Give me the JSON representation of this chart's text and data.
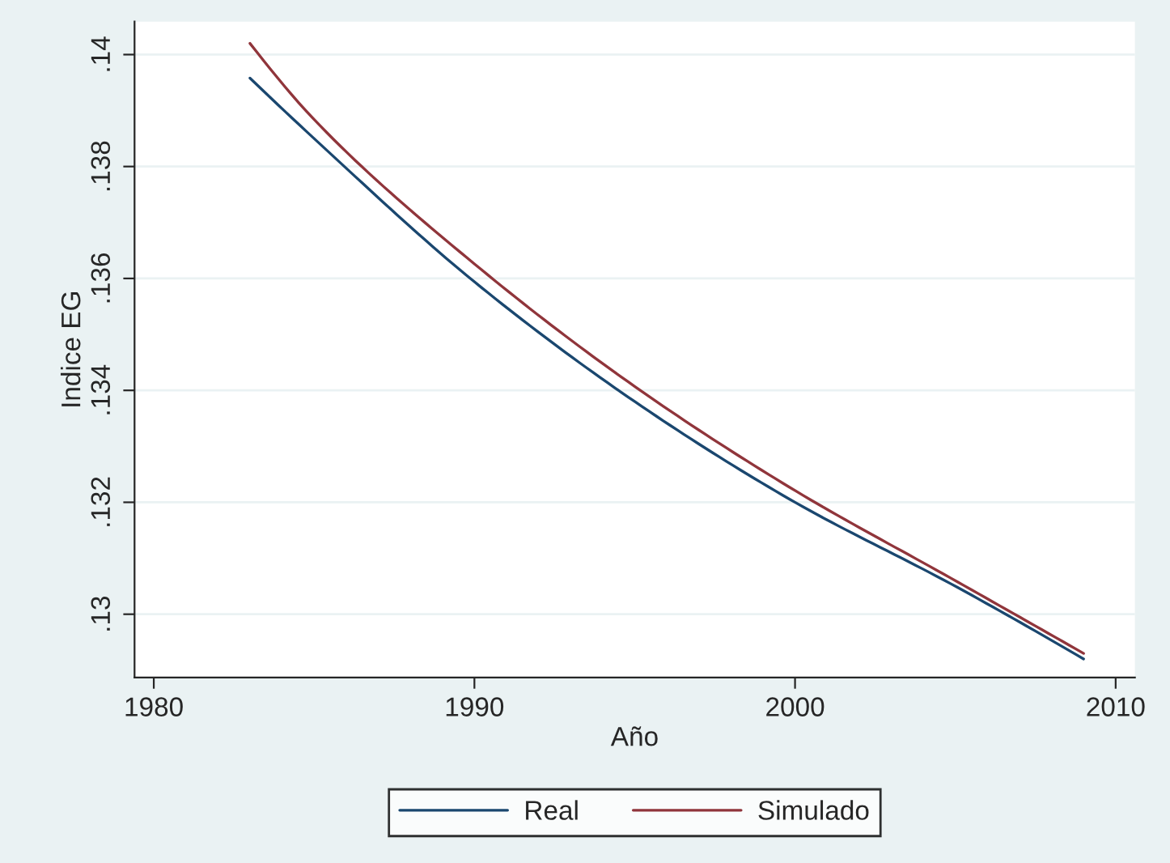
{
  "chart_data": {
    "type": "line",
    "xlabel": "Año",
    "ylabel": "Indice EG",
    "x": [
      1983,
      1985,
      1990,
      1995,
      2000,
      2005,
      2009
    ],
    "series": [
      {
        "name": "Real",
        "color": "#1a476f",
        "values": [
          0.13958,
          0.1385,
          0.13594,
          0.1338,
          0.132,
          0.1305,
          0.1292
        ]
      },
      {
        "name": "Simulado",
        "color": "#90353b",
        "values": [
          0.1402,
          0.13884,
          0.13626,
          0.13407,
          0.13221,
          0.1306,
          0.1293
        ]
      }
    ],
    "xlim": [
      1979.4,
      2010.6
    ],
    "ylim": [
      0.12887,
      0.14059
    ],
    "xticks": [
      1980,
      1990,
      2000,
      2010
    ],
    "yticks": [
      {
        "value": 0.13,
        "label": ".13"
      },
      {
        "value": 0.132,
        "label": ".132"
      },
      {
        "value": 0.134,
        "label": ".134"
      },
      {
        "value": 0.136,
        "label": ".136"
      },
      {
        "value": 0.138,
        "label": ".138"
      },
      {
        "value": 0.14,
        "label": ".14"
      }
    ],
    "grid": "y",
    "legend": "bottom",
    "line_style": "solid",
    "marker": "none"
  }
}
